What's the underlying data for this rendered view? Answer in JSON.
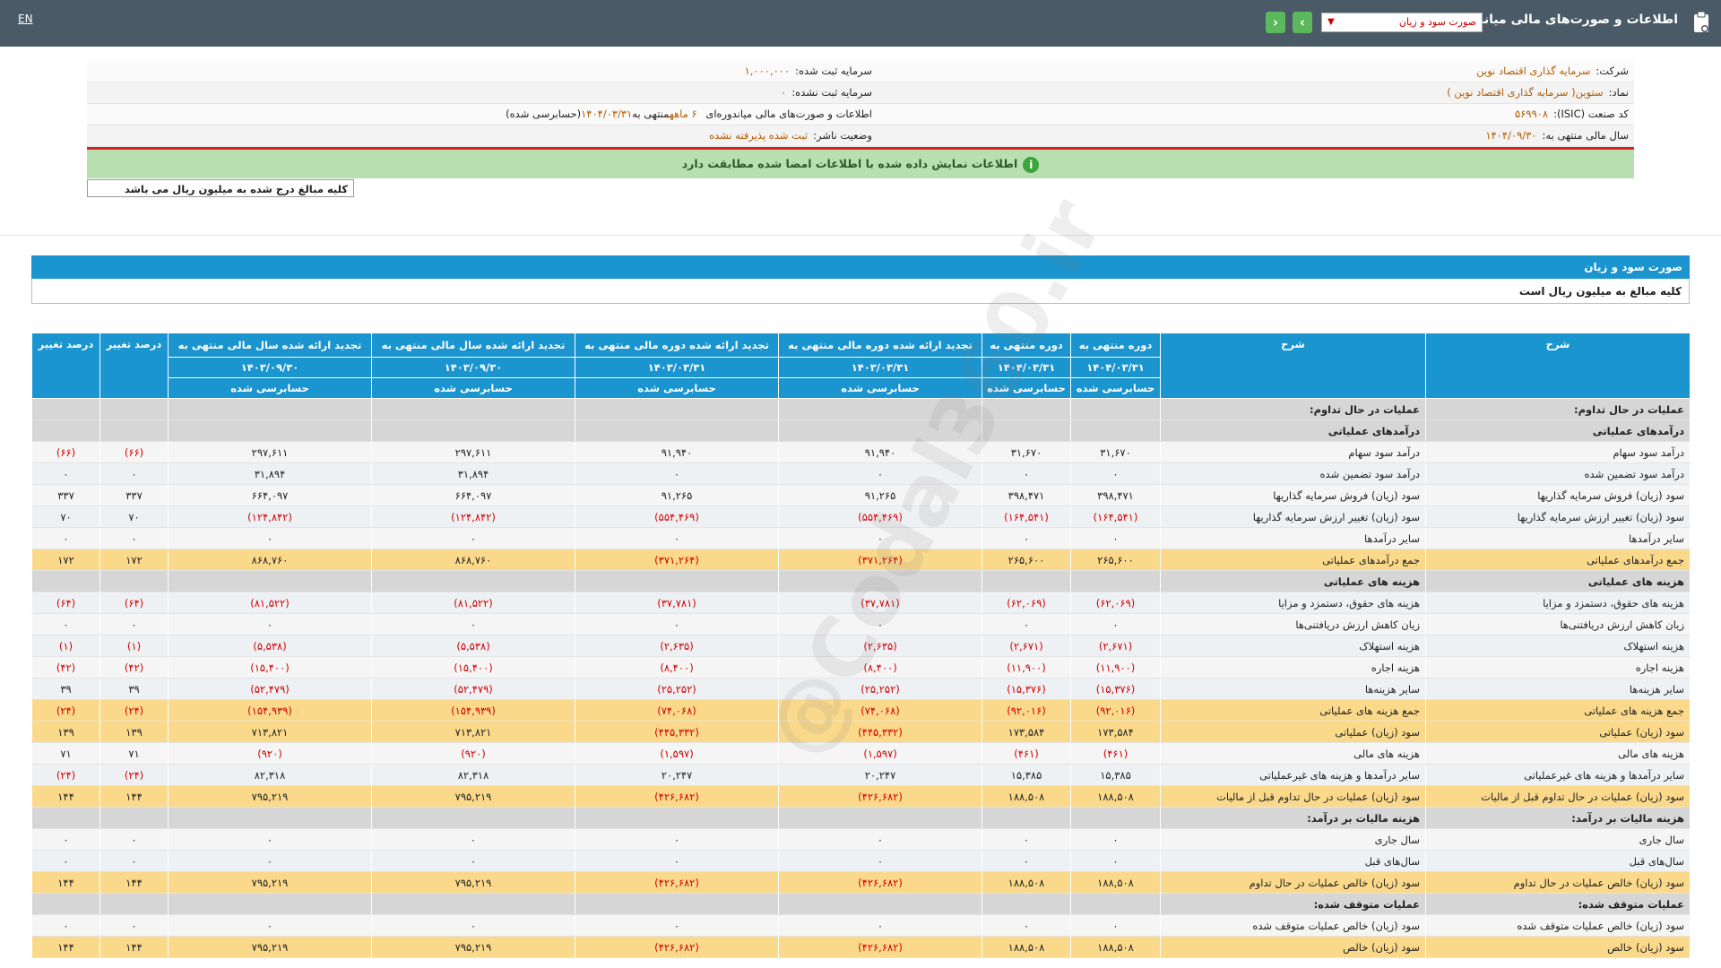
{
  "topbar": {
    "title": "اطلاعات و صورت‌های مالی میاندوره‌ای",
    "report_select": "صورت سود و زیان",
    "lang": "EN",
    "nav_prev_icon": "chevron-left-icon",
    "nav_next_icon": "chevron-right-icon"
  },
  "info": {
    "company_label": "شرکت:",
    "company_value": "سرمایه گذاری اقتصاد نوین",
    "symbol_label": "نماد:",
    "symbol_value": "ستوین( سرمایه گذاری اقتصاد نوین )",
    "isic_label": "کد صنعت (ISIC):",
    "isic_value": "۵۶۹۹۰۸",
    "fiscal_label": "سال مالی منتهی به:",
    "fiscal_value": "۱۴۰۴/۰۹/۳۰",
    "capital_reg_label": "سرمایه ثبت شده:",
    "capital_reg_value": "۱,۰۰۰,۰۰۰",
    "capital_unreg_label": "سرمایه ثبت نشده:",
    "capital_unreg_value": "۰",
    "period_text_pre": "اطلاعات و صورت‌های مالی میاندوره‌ای",
    "period_months": "۶ ماهه",
    "period_text_mid": "منتهی به",
    "period_date": "۱۴۰۴/۰۳/۳۱",
    "period_status": "(حسابرسی شده)",
    "publisher_label": "وضعیت ناشر:",
    "publisher_value": "ثبت شده پذیرفته نشده",
    "green_msg": "اطلاعات نمایش داده شده با اطلاعات امضا شده مطابقت دارد",
    "unit_note": "کلیه مبالغ درج شده به میلیون ریال می باشد"
  },
  "section": {
    "title": "صورت سود و زیان",
    "subtitle": "کلیه مبالغ به میلیون ریال است"
  },
  "watermark": "@Codal360.ir",
  "table": {
    "headers": {
      "desc": "شرح",
      "c1": "دوره منتهی به",
      "c1d": "۱۴۰۴/۰۳/۳۱",
      "c1s": "حسابرسی شده",
      "c2": "دوره منتهی به",
      "c2d": "۱۴۰۴/۰۳/۳۱",
      "c2s": "حسابرسی شده",
      "c3": "تجدید ارائه شده دوره مالی منتهی به",
      "c3d": "۱۴۰۳/۰۳/۳۱",
      "c3s": "حسابرسی شده",
      "c4": "تجدید ارائه شده دوره مالی منتهی به",
      "c4d": "۱۴۰۳/۰۳/۳۱",
      "c4s": "حسابرسی شده",
      "c5": "تجدید ارائه شده سال مالی منتهی به",
      "c5d": "۱۴۰۳/۰۹/۳۰",
      "c5s": "حسابرسی شده",
      "c6": "تجدید ارائه شده سال مالی منتهی به",
      "c6d": "۱۴۰۳/۰۹/۳۰",
      "c6s": "حسابرسی شده",
      "p1": "درصد تغییر",
      "p2": "درصد تغییر"
    },
    "rows": [
      {
        "type": "sect",
        "d1": "عملیات در حال تداوم:",
        "d2": "عملیات در حال تداوم:",
        "v": [
          "",
          "",
          "",
          "",
          "",
          "",
          "",
          ""
        ]
      },
      {
        "type": "sect",
        "d1": "درآمدهای عملیاتی",
        "d2": "درآمدهای عملیاتی",
        "v": [
          "",
          "",
          "",
          "",
          "",
          "",
          "",
          ""
        ]
      },
      {
        "type": "plain",
        "d1": "درآمد سود سهام",
        "d2": "درآمد سود سهام",
        "v": [
          "۳۱,۶۷۰",
          "۳۱,۶۷۰",
          "۹۱,۹۴۰",
          "۹۱,۹۴۰",
          "۲۹۷,۶۱۱",
          "۲۹۷,۶۱۱",
          "(۶۶)",
          "(۶۶)"
        ]
      },
      {
        "type": "plain",
        "d1": "درآمد سود تضمین شده",
        "d2": "درآمد سود تضمین شده",
        "v": [
          "۰",
          "۰",
          "۰",
          "۰",
          "۳۱,۸۹۴",
          "۳۱,۸۹۴",
          "۰",
          "۰"
        ]
      },
      {
        "type": "plain",
        "d1": "سود (زیان) فروش سرمایه گذاریها",
        "d2": "سود (زیان) فروش سرمایه گذاریها",
        "v": [
          "۳۹۸,۴۷۱",
          "۳۹۸,۴۷۱",
          "۹۱,۲۶۵",
          "۹۱,۲۶۵",
          "۶۶۴,۰۹۷",
          "۶۶۴,۰۹۷",
          "۳۳۷",
          "۳۳۷"
        ]
      },
      {
        "type": "plain",
        "d1": "سود (زیان) تغییر ارزش سرمایه گذاریها",
        "d2": "سود (زیان) تغییر ارزش سرمایه گذاریها",
        "v": [
          "(۱۶۴,۵۴۱)",
          "(۱۶۴,۵۴۱)",
          "(۵۵۴,۴۶۹)",
          "(۵۵۴,۴۶۹)",
          "(۱۲۴,۸۴۲)",
          "(۱۲۴,۸۴۲)",
          "۷۰",
          "۷۰"
        ]
      },
      {
        "type": "plain",
        "d1": "سایر درآمدها",
        "d2": "سایر درآمدها",
        "v": [
          "۰",
          "۰",
          "۰",
          "۰",
          "۰",
          "۰",
          "۰",
          "۰"
        ]
      },
      {
        "type": "total",
        "d1": "جمع درآمدهای عملیاتی",
        "d2": "جمع درآمدهای عملیاتی",
        "v": [
          "۲۶۵,۶۰۰",
          "۲۶۵,۶۰۰",
          "(۳۷۱,۲۶۴)",
          "(۳۷۱,۲۶۴)",
          "۸۶۸,۷۶۰",
          "۸۶۸,۷۶۰",
          "۱۷۲",
          "۱۷۲"
        ]
      },
      {
        "type": "sect",
        "d1": "هزینه های عملیاتی",
        "d2": "هزینه های عملیاتی",
        "v": [
          "",
          "",
          "",
          "",
          "",
          "",
          "",
          ""
        ]
      },
      {
        "type": "plain",
        "d1": "هزینه های حقوق، دستمزد و مزایا",
        "d2": "هزینه های حقوق، دستمزد و مزایا",
        "v": [
          "(۶۲,۰۶۹)",
          "(۶۲,۰۶۹)",
          "(۳۷,۷۸۱)",
          "(۳۷,۷۸۱)",
          "(۸۱,۵۲۲)",
          "(۸۱,۵۲۲)",
          "(۶۴)",
          "(۶۴)"
        ]
      },
      {
        "type": "plain",
        "d1": "زیان کاهش ارزش دریافتنی‌ها",
        "d2": "زیان کاهش ارزش دریافتنی‌ها",
        "v": [
          "۰",
          "۰",
          "۰",
          "۰",
          "۰",
          "۰",
          "۰",
          "۰"
        ]
      },
      {
        "type": "plain",
        "d1": "هزینه استهلاک",
        "d2": "هزینه استهلاک",
        "v": [
          "(۲,۶۷۱)",
          "(۲,۶۷۱)",
          "(۲,۶۳۵)",
          "(۲,۶۳۵)",
          "(۵,۵۳۸)",
          "(۵,۵۳۸)",
          "(۱)",
          "(۱)"
        ]
      },
      {
        "type": "plain",
        "d1": "هزینه اجاره",
        "d2": "هزینه اجاره",
        "v": [
          "(۱۱,۹۰۰)",
          "(۱۱,۹۰۰)",
          "(۸,۴۰۰)",
          "(۸,۴۰۰)",
          "(۱۵,۴۰۰)",
          "(۱۵,۴۰۰)",
          "(۴۲)",
          "(۴۲)"
        ]
      },
      {
        "type": "plain",
        "d1": "سایر هزینه‌ها",
        "d2": "سایر هزینه‌ها",
        "v": [
          "(۱۵,۳۷۶)",
          "(۱۵,۳۷۶)",
          "(۲۵,۲۵۲)",
          "(۲۵,۲۵۲)",
          "(۵۲,۴۷۹)",
          "(۵۲,۴۷۹)",
          "۳۹",
          "۳۹"
        ]
      },
      {
        "type": "total",
        "d1": "جمع هزینه های عملیاتی",
        "d2": "جمع هزینه های عملیاتی",
        "v": [
          "(۹۲,۰۱۶)",
          "(۹۲,۰۱۶)",
          "(۷۴,۰۶۸)",
          "(۷۴,۰۶۸)",
          "(۱۵۴,۹۳۹)",
          "(۱۵۴,۹۳۹)",
          "(۲۴)",
          "(۲۴)"
        ]
      },
      {
        "type": "total",
        "d1": "سود (زیان) عملیاتی",
        "d2": "سود (زیان) عملیاتی",
        "v": [
          "۱۷۳,۵۸۴",
          "۱۷۳,۵۸۴",
          "(۴۴۵,۳۳۲)",
          "(۴۴۵,۳۳۲)",
          "۷۱۳,۸۲۱",
          "۷۱۳,۸۲۱",
          "۱۳۹",
          "۱۳۹"
        ]
      },
      {
        "type": "plain",
        "d1": "هزینه های مالی",
        "d2": "هزینه های مالی",
        "v": [
          "(۴۶۱)",
          "(۴۶۱)",
          "(۱,۵۹۷)",
          "(۱,۵۹۷)",
          "(۹۲۰)",
          "(۹۲۰)",
          "۷۱",
          "۷۱"
        ]
      },
      {
        "type": "plain",
        "d1": "سایر درآمدها و هزینه های غیرعملیاتی",
        "d2": "سایر درآمدها و هزینه های غیرعملیاتی",
        "v": [
          "۱۵,۳۸۵",
          "۱۵,۳۸۵",
          "۲۰,۲۴۷",
          "۲۰,۲۴۷",
          "۸۲,۳۱۸",
          "۸۲,۳۱۸",
          "(۲۴)",
          "(۲۴)"
        ]
      },
      {
        "type": "total",
        "d1": "سود (زیان) عملیات در حال تداوم قبل از مالیات",
        "d2": "سود (زیان) عملیات در حال تداوم قبل از مالیات",
        "v": [
          "۱۸۸,۵۰۸",
          "۱۸۸,۵۰۸",
          "(۴۲۶,۶۸۲)",
          "(۴۲۶,۶۸۲)",
          "۷۹۵,۲۱۹",
          "۷۹۵,۲۱۹",
          "۱۴۴",
          "۱۴۴"
        ]
      },
      {
        "type": "sect",
        "d1": "هزینه مالیات بر درآمد:",
        "d2": "هزینه مالیات بر درآمد:",
        "v": [
          "",
          "",
          "",
          "",
          "",
          "",
          "",
          ""
        ]
      },
      {
        "type": "plain",
        "d1": "سال جاری",
        "d2": "سال جاری",
        "v": [
          "۰",
          "۰",
          "۰",
          "۰",
          "۰",
          "۰",
          "۰",
          "۰"
        ]
      },
      {
        "type": "plain",
        "d1": "سال‌های قبل",
        "d2": "سال‌های قبل",
        "v": [
          "۰",
          "۰",
          "۰",
          "۰",
          "۰",
          "۰",
          "۰",
          "۰"
        ]
      },
      {
        "type": "total",
        "d1": "سود (زیان) خالص عملیات در حال تداوم",
        "d2": "سود (زیان) خالص عملیات در حال تداوم",
        "v": [
          "۱۸۸,۵۰۸",
          "۱۸۸,۵۰۸",
          "(۴۲۶,۶۸۲)",
          "(۴۲۶,۶۸۲)",
          "۷۹۵,۲۱۹",
          "۷۹۵,۲۱۹",
          "۱۴۴",
          "۱۴۴"
        ]
      },
      {
        "type": "sect",
        "d1": "عملیات متوقف شده:",
        "d2": "عملیات متوقف شده:",
        "v": [
          "",
          "",
          "",
          "",
          "",
          "",
          "",
          ""
        ]
      },
      {
        "type": "plain",
        "d1": "سود (زیان) خالص عملیات متوقف شده",
        "d2": "سود (زیان) خالص عملیات متوقف شده",
        "v": [
          "۰",
          "۰",
          "۰",
          "۰",
          "۰",
          "۰",
          "۰",
          "۰"
        ]
      },
      {
        "type": "total",
        "d1": "سود (زیان) خالص",
        "d2": "سود (زیان) خالص",
        "v": [
          "۱۸۸,۵۰۸",
          "۱۸۸,۵۰۸",
          "(۴۲۶,۶۸۲)",
          "(۴۲۶,۶۸۲)",
          "۷۹۵,۲۱۹",
          "۷۹۵,۲۱۹",
          "۱۴۴",
          "۱۴۴"
        ]
      }
    ]
  }
}
